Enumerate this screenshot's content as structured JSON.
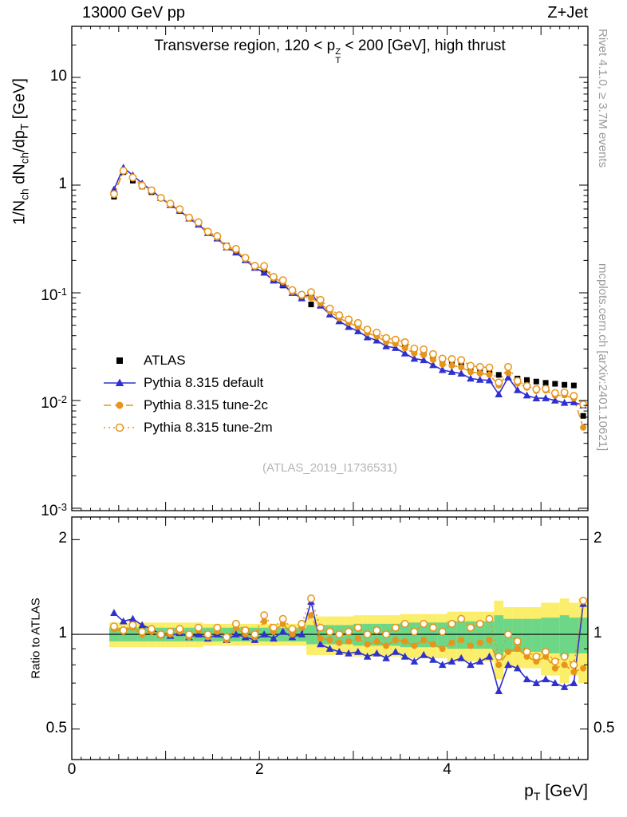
{
  "header": {
    "left": "13000 GeV pp",
    "right": "Z+Jet"
  },
  "watermark": "(ATLAS_2019_I1736531)",
  "side_notes": {
    "top": "Rivet 4.1.0, ≥ 3.7M events",
    "bottom": "mcplots.cern.ch [arXiv:2401.10621]"
  },
  "labels": {
    "title_segments": [
      {
        "t": "Transverse region, 120 < p"
      },
      {
        "t": "",
        "sup": "Z",
        "sub": "T"
      },
      {
        "t": " < 200 [GeV], high thrust"
      }
    ],
    "ylabel_segments": [
      {
        "t": "1/N",
        "sub": "ch"
      },
      {
        "t": " dN",
        "sub": "ch"
      },
      {
        "t": "/dp",
        "sub": "T"
      },
      {
        "t": " [GeV]"
      }
    ],
    "xlabel_segments": [
      {
        "t": "p",
        "sub": "T"
      },
      {
        "t": " [GeV]"
      }
    ],
    "ratio_ylabel": "Ratio to ATLAS"
  },
  "colors": {
    "atlas": "#000000",
    "pythia_default": "#3030cf",
    "pythia_tunes": "#e8941a",
    "band_green": "#6ed687",
    "band_yellow": "#fbee6a"
  },
  "legend": [
    {
      "label": "ATLAS",
      "marker": "square",
      "line": "none",
      "color": "#000000"
    },
    {
      "label": "Pythia 8.315 default",
      "marker": "triangle",
      "line": "solid",
      "color": "#3030cf"
    },
    {
      "label": "Pythia 8.315 tune-2c",
      "marker": "circle",
      "line": "dashed",
      "color": "#e8941a"
    },
    {
      "label": "Pythia 8.315 tune-2m",
      "marker": "circle-open",
      "line": "dotted",
      "color": "#e8941a"
    }
  ],
  "axes": {
    "x": {
      "min": 0,
      "max": 5.5,
      "ticks": [
        {
          "v": 0,
          "label": "0"
        },
        {
          "v": 2,
          "label": "2"
        },
        {
          "v": 4,
          "label": "4"
        }
      ]
    },
    "y_top": {
      "scale": "log",
      "min": 0.00095,
      "max": 29.8,
      "ticks": [
        {
          "v": 10,
          "base": "10"
        },
        {
          "v": 1,
          "base": "1"
        },
        {
          "v": 0.1,
          "base": "10",
          "exp": "-1"
        },
        {
          "v": 0.01,
          "base": "10",
          "exp": "-2"
        },
        {
          "v": 0.001,
          "base": "10",
          "exp": "-3"
        }
      ]
    },
    "y_ratio": {
      "scale": "log",
      "min": 0.4,
      "max": 2.36,
      "ticks": [
        {
          "v": 2,
          "base": "2"
        },
        {
          "v": 1,
          "base": "1"
        },
        {
          "v": 0.5,
          "base": "0.5"
        }
      ]
    }
  },
  "chart_data": {
    "type": "line",
    "title": "Transverse region, 120 < pT(Z) < 200 [GeV], high thrust",
    "xlabel": "pT [GeV]",
    "ylabel": "1/Nch dNch/dpT [GeV]",
    "ratio_ylabel": "Ratio to ATLAS",
    "xlim": [
      0,
      5.5
    ],
    "ylim_top": [
      0.00095,
      29.8
    ],
    "ylim_ratio": [
      0.4,
      2.36
    ],
    "grid": false,
    "legend_position": "middle-left",
    "bin_width": 0.1,
    "x": [
      0.45,
      0.55,
      0.65,
      0.75,
      0.85,
      0.95,
      1.05,
      1.15,
      1.25,
      1.35,
      1.45,
      1.55,
      1.65,
      1.75,
      1.85,
      1.95,
      2.05,
      2.15,
      2.25,
      2.35,
      2.45,
      2.55,
      2.65,
      2.75,
      2.85,
      2.95,
      3.05,
      3.15,
      3.25,
      3.35,
      3.45,
      3.55,
      3.65,
      3.75,
      3.85,
      3.95,
      4.05,
      4.15,
      4.25,
      4.35,
      4.45,
      4.55,
      4.65,
      4.75,
      4.85,
      4.95,
      5.05,
      5.15,
      5.25,
      5.35,
      5.45
    ],
    "series": [
      {
        "name": "ATLAS",
        "marker": "square",
        "line": "none",
        "color": "#000000",
        "values": [
          0.78,
          1.32,
          1.1,
          0.97,
          0.86,
          0.76,
          0.66,
          0.575,
          0.5,
          0.43,
          0.37,
          0.32,
          0.275,
          0.237,
          0.205,
          0.178,
          0.154,
          0.134,
          0.117,
          0.102,
          0.089,
          0.078,
          0.082,
          0.07,
          0.062,
          0.0555,
          0.05,
          0.0455,
          0.0415,
          0.038,
          0.035,
          0.0322,
          0.0298,
          0.0276,
          0.0257,
          0.024,
          0.0225,
          0.0212,
          0.02,
          0.019,
          0.0181,
          0.0173,
          0.0205,
          0.016,
          0.0155,
          0.015,
          0.0146,
          0.0143,
          0.014,
          0.0138,
          0.0072
        ]
      },
      {
        "name": "Pythia 8.315 default",
        "marker": "triangle",
        "line": "solid",
        "color": "#3030cf",
        "ratio": [
          1.17,
          1.1,
          1.12,
          1.07,
          1.04,
          1.0,
          0.99,
          1.01,
          0.98,
          1.0,
          0.97,
          1.0,
          0.96,
          1.0,
          0.98,
          0.96,
          1.0,
          0.97,
          1.02,
          0.98,
          1.0,
          1.27,
          0.93,
          0.9,
          0.88,
          0.87,
          0.88,
          0.85,
          0.87,
          0.84,
          0.88,
          0.85,
          0.82,
          0.86,
          0.83,
          0.8,
          0.82,
          0.84,
          0.8,
          0.82,
          0.85,
          0.66,
          0.8,
          0.78,
          0.72,
          0.7,
          0.72,
          0.7,
          0.68,
          0.7,
          1.25
        ]
      },
      {
        "name": "Pythia 8.315 tune-2c",
        "marker": "circle",
        "line": "dashed",
        "color": "#e8941a",
        "ratio": [
          1.04,
          1.02,
          1.05,
          1.0,
          1.02,
          0.99,
          1.0,
          1.02,
          0.98,
          1.03,
          0.98,
          1.02,
          0.96,
          1.05,
          1.0,
          0.98,
          1.1,
          1.02,
          1.08,
          1.0,
          1.05,
          1.15,
          0.97,
          0.96,
          0.94,
          0.95,
          0.97,
          0.93,
          0.95,
          0.92,
          0.96,
          0.95,
          0.92,
          0.96,
          0.93,
          0.9,
          0.94,
          0.96,
          0.92,
          0.94,
          0.96,
          0.8,
          0.88,
          0.9,
          0.85,
          0.82,
          0.85,
          0.78,
          0.8,
          0.76,
          0.78
        ]
      },
      {
        "name": "Pythia 8.315 tune-2m",
        "marker": "circle-open",
        "line": "dotted",
        "color": "#e8941a",
        "ratio": [
          1.06,
          1.03,
          1.07,
          1.02,
          1.04,
          1.0,
          1.02,
          1.04,
          1.0,
          1.05,
          1.0,
          1.05,
          0.98,
          1.08,
          1.03,
          1.0,
          1.15,
          1.05,
          1.12,
          1.04,
          1.08,
          1.3,
          1.05,
          1.02,
          1.0,
          1.02,
          1.05,
          1.0,
          1.03,
          1.0,
          1.05,
          1.08,
          1.02,
          1.08,
          1.05,
          1.02,
          1.08,
          1.12,
          1.05,
          1.08,
          1.12,
          0.85,
          1.0,
          0.95,
          0.88,
          0.85,
          0.88,
          0.82,
          0.85,
          0.8,
          1.28
        ]
      }
    ],
    "bands": {
      "green_halfwidth": [
        0.05,
        0.05,
        0.05,
        0.05,
        0.05,
        0.05,
        0.05,
        0.05,
        0.05,
        0.05,
        0.05,
        0.05,
        0.05,
        0.05,
        0.05,
        0.05,
        0.05,
        0.05,
        0.05,
        0.05,
        0.05,
        0.07,
        0.07,
        0.07,
        0.07,
        0.07,
        0.08,
        0.08,
        0.08,
        0.08,
        0.08,
        0.09,
        0.09,
        0.09,
        0.09,
        0.09,
        0.1,
        0.1,
        0.1,
        0.1,
        0.1,
        0.15,
        0.12,
        0.12,
        0.12,
        0.12,
        0.13,
        0.13,
        0.15,
        0.13,
        0.13
      ],
      "yellow_halfwidth": [
        0.09,
        0.09,
        0.09,
        0.09,
        0.09,
        0.09,
        0.09,
        0.09,
        0.09,
        0.09,
        0.08,
        0.08,
        0.08,
        0.08,
        0.08,
        0.08,
        0.08,
        0.08,
        0.08,
        0.08,
        0.08,
        0.14,
        0.14,
        0.14,
        0.14,
        0.14,
        0.15,
        0.15,
        0.15,
        0.15,
        0.15,
        0.16,
        0.16,
        0.16,
        0.16,
        0.16,
        0.18,
        0.18,
        0.18,
        0.18,
        0.18,
        0.28,
        0.22,
        0.22,
        0.22,
        0.22,
        0.26,
        0.26,
        0.3,
        0.26,
        0.3
      ]
    }
  }
}
